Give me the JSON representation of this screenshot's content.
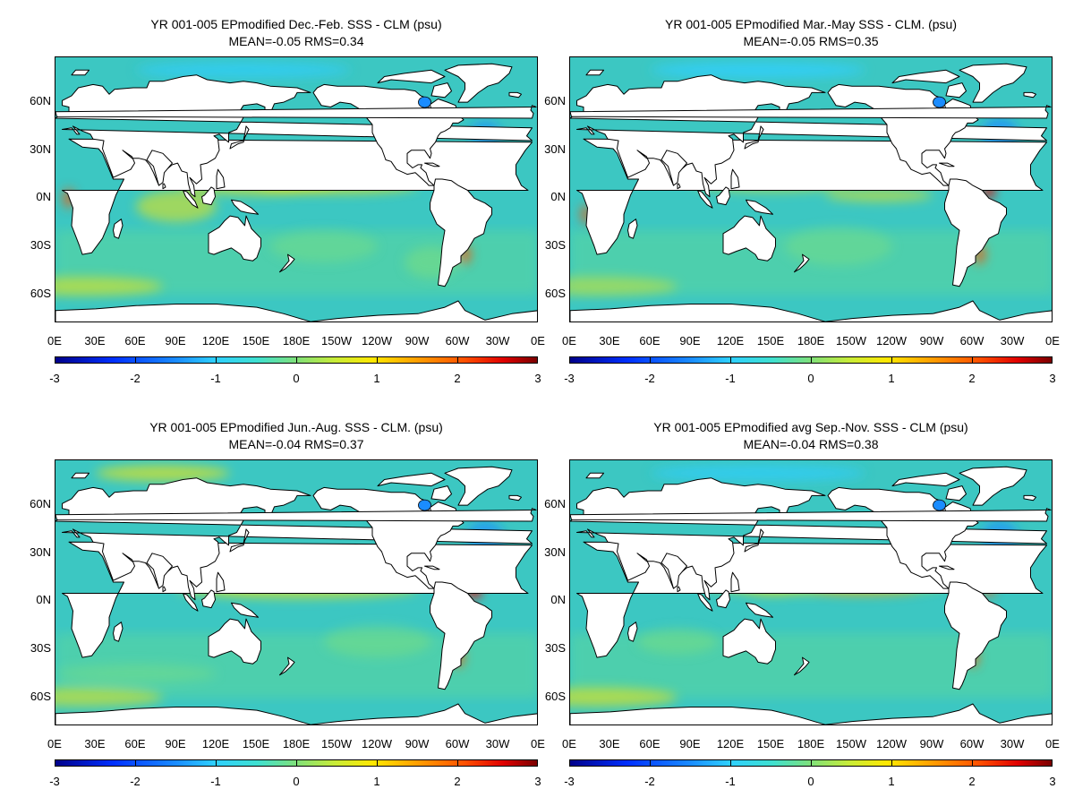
{
  "panels": [
    {
      "title": "YR 001-005 EPmodified  Dec.-Feb. SSS - CLM (psu)",
      "stats": "MEAN=-0.05   RMS=0.34"
    },
    {
      "title": "YR 001-005 EPmodified Mar.-May SSS - CLM. (psu)",
      "stats": "MEAN=-0.05   RMS=0.35"
    },
    {
      "title": "YR 001-005 EPmodified Jun.-Aug. SSS - CLM. (psu)",
      "stats": "MEAN=-0.04   RMS=0.37"
    },
    {
      "title": "YR 001-005 EPmodified avg Sep.-Nov. SSS - CLM (psu)",
      "stats": "MEAN=-0.04   RMS=0.38"
    }
  ],
  "lat_labels": [
    "60N",
    "30N",
    "0N",
    "30S",
    "60S"
  ],
  "lon_labels": [
    "0E",
    "30E",
    "60E",
    "90E",
    "120E",
    "150E",
    "180E",
    "150W",
    "120W",
    "90W",
    "60W",
    "30W",
    "0E"
  ],
  "colorbar_labels": [
    "-3",
    "-2",
    "-1",
    "0",
    "1",
    "2",
    "3"
  ],
  "colors": {
    "land": "#ffffff",
    "ocean_base": "#3cc7c2",
    "coast": "#000000"
  }
}
